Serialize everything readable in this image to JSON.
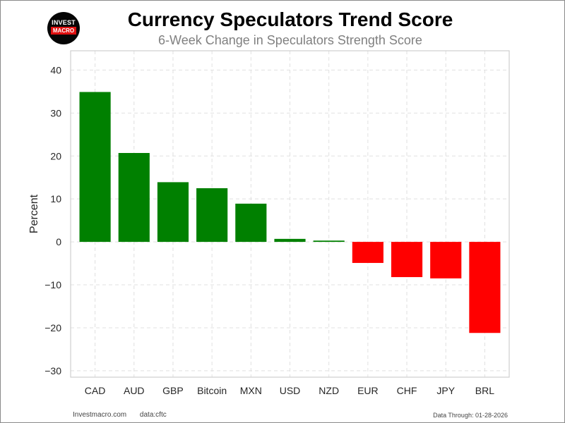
{
  "logo": {
    "line1": "INVEST",
    "line2": "MACRO"
  },
  "chart_data": {
    "type": "bar",
    "title": "Currency Speculators Trend Score",
    "subtitle": "6-Week Change in Speculators Strength Score",
    "xlabel": "",
    "ylabel": "Percent",
    "ylim": [
      -31.5,
      44.5
    ],
    "yticks": [
      40,
      30,
      20,
      10,
      0,
      -10,
      -20,
      -30
    ],
    "ytick_labels": [
      "40",
      "30",
      "20",
      "10",
      "0",
      "−10",
      "−20",
      "−30"
    ],
    "grid": true,
    "categories": [
      "CAD",
      "AUD",
      "GBP",
      "Bitcoin",
      "MXN",
      "USD",
      "NZD",
      "EUR",
      "CHF",
      "JPY",
      "BRL"
    ],
    "values": [
      34.9,
      20.7,
      13.9,
      12.5,
      8.9,
      0.7,
      0.3,
      -4.9,
      -8.2,
      -8.5,
      -21.2
    ],
    "colors": {
      "positive": "#008000",
      "negative": "#ff0000"
    }
  },
  "footer": {
    "site": "Investmacro.com",
    "data_source": "data:cftc",
    "data_through": "Data Through: 01-28-2026"
  }
}
